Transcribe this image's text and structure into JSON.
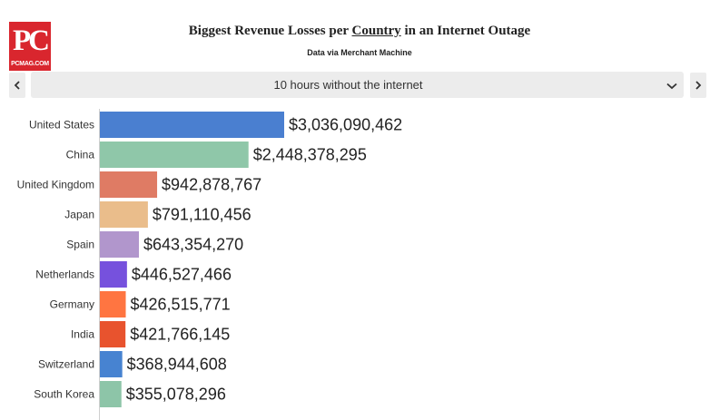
{
  "logo": {
    "letters": "PC",
    "url": "PCMAG.COM"
  },
  "header": {
    "title_before": "Biggest Revenue Losses per",
    "title_link": "Country",
    "title_after": "in an Internet Outage",
    "subtitle": "Data via Merchant Machine"
  },
  "selector": {
    "value": "10 hours without the internet"
  },
  "icons": {
    "prev": "chevron-left-icon",
    "next": "chevron-right-icon",
    "dropdown": "chevron-down-icon"
  },
  "chart_data": {
    "type": "bar",
    "orientation": "horizontal",
    "title": "Biggest Revenue Losses per Country in an Internet Outage",
    "categories": [
      "United States",
      "China",
      "United Kingdom",
      "Japan",
      "Spain",
      "Netherlands",
      "Germany",
      "India",
      "Switzerland",
      "South Korea"
    ],
    "values": [
      3036090462,
      2448378295,
      942878767,
      791110456,
      643354270,
      446527466,
      426515771,
      421766145,
      368944608,
      355078296
    ],
    "labels": [
      "$3,036,090,462",
      "$2,448,378,295",
      "$942,878,767",
      "$791,110,456",
      "$643,354,270",
      "$446,527,466",
      "$426,515,771",
      "$421,766,145",
      "$368,944,608",
      "$355,078,296"
    ],
    "colors": [
      "#4a7fd0",
      "#8fc7a9",
      "#df7b64",
      "#eabd8b",
      "#b196cc",
      "#7651dd",
      "#ff7541",
      "#e8532e",
      "#4783d1",
      "#8dc5a8"
    ],
    "xlim": [
      0,
      3036090462
    ],
    "grid": false,
    "legend": "none"
  }
}
